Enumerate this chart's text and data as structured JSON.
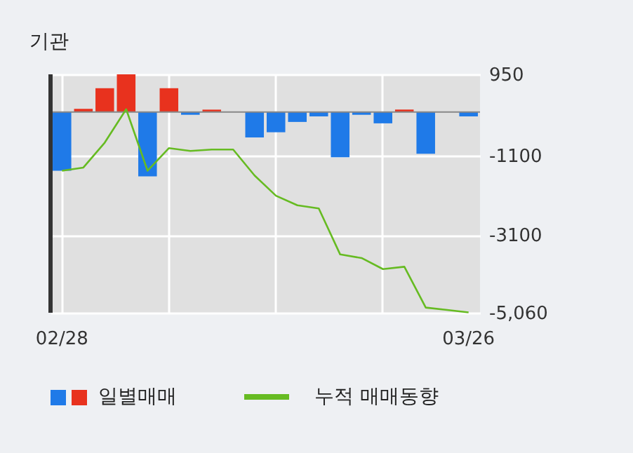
{
  "chart_data": {
    "type": "bar",
    "title": "기관",
    "categories": [
      "02/28",
      null,
      null,
      null,
      null,
      null,
      null,
      null,
      null,
      null,
      null,
      null,
      null,
      null,
      null,
      null,
      null,
      null,
      null,
      "03/26"
    ],
    "series": [
      {
        "name": "일별매매",
        "colors": [
          "#1f7ae8",
          "#e8321e",
          "#e8321e",
          "#e8321e",
          "#1f7ae8",
          "#e8321e",
          "#1f7ae8",
          "#e8321e",
          "#1f7ae8",
          "#1f7ae8",
          "#1f7ae8",
          "#1f7ae8",
          "#1f7ae8",
          "#1f7ae8",
          "#1f7ae8",
          "#1f7ae8",
          "#e8321e",
          "#1f7ae8",
          "#1f7ae8",
          "#1f7ae8"
        ],
        "values": [
          -1480,
          80,
          600,
          950,
          -1620,
          600,
          -70,
          60,
          0,
          -640,
          -510,
          -250,
          -110,
          -1140,
          -70,
          -285,
          60,
          -1050,
          0,
          -110
        ]
      },
      {
        "name": "누적 매매동향",
        "type": "line",
        "color": "#66bb22",
        "values": [
          -1480,
          -1400,
          -770,
          70,
          -1480,
          -910,
          -980,
          -945,
          -945,
          -1600,
          -2110,
          -2350,
          -2430,
          -3590,
          -3680,
          -3960,
          -3900,
          -4930,
          -4990,
          -5050
        ]
      }
    ],
    "ylim": [
      -5060,
      950
    ],
    "yticks": [
      950,
      -1100,
      -3100,
      {
        "value": -5060,
        "label": "-5,060"
      }
    ],
    "ref_lines": [
      {
        "axis": "y",
        "value": 0,
        "color": "#888888"
      }
    ],
    "grid": true,
    "legend": "bottom"
  }
}
